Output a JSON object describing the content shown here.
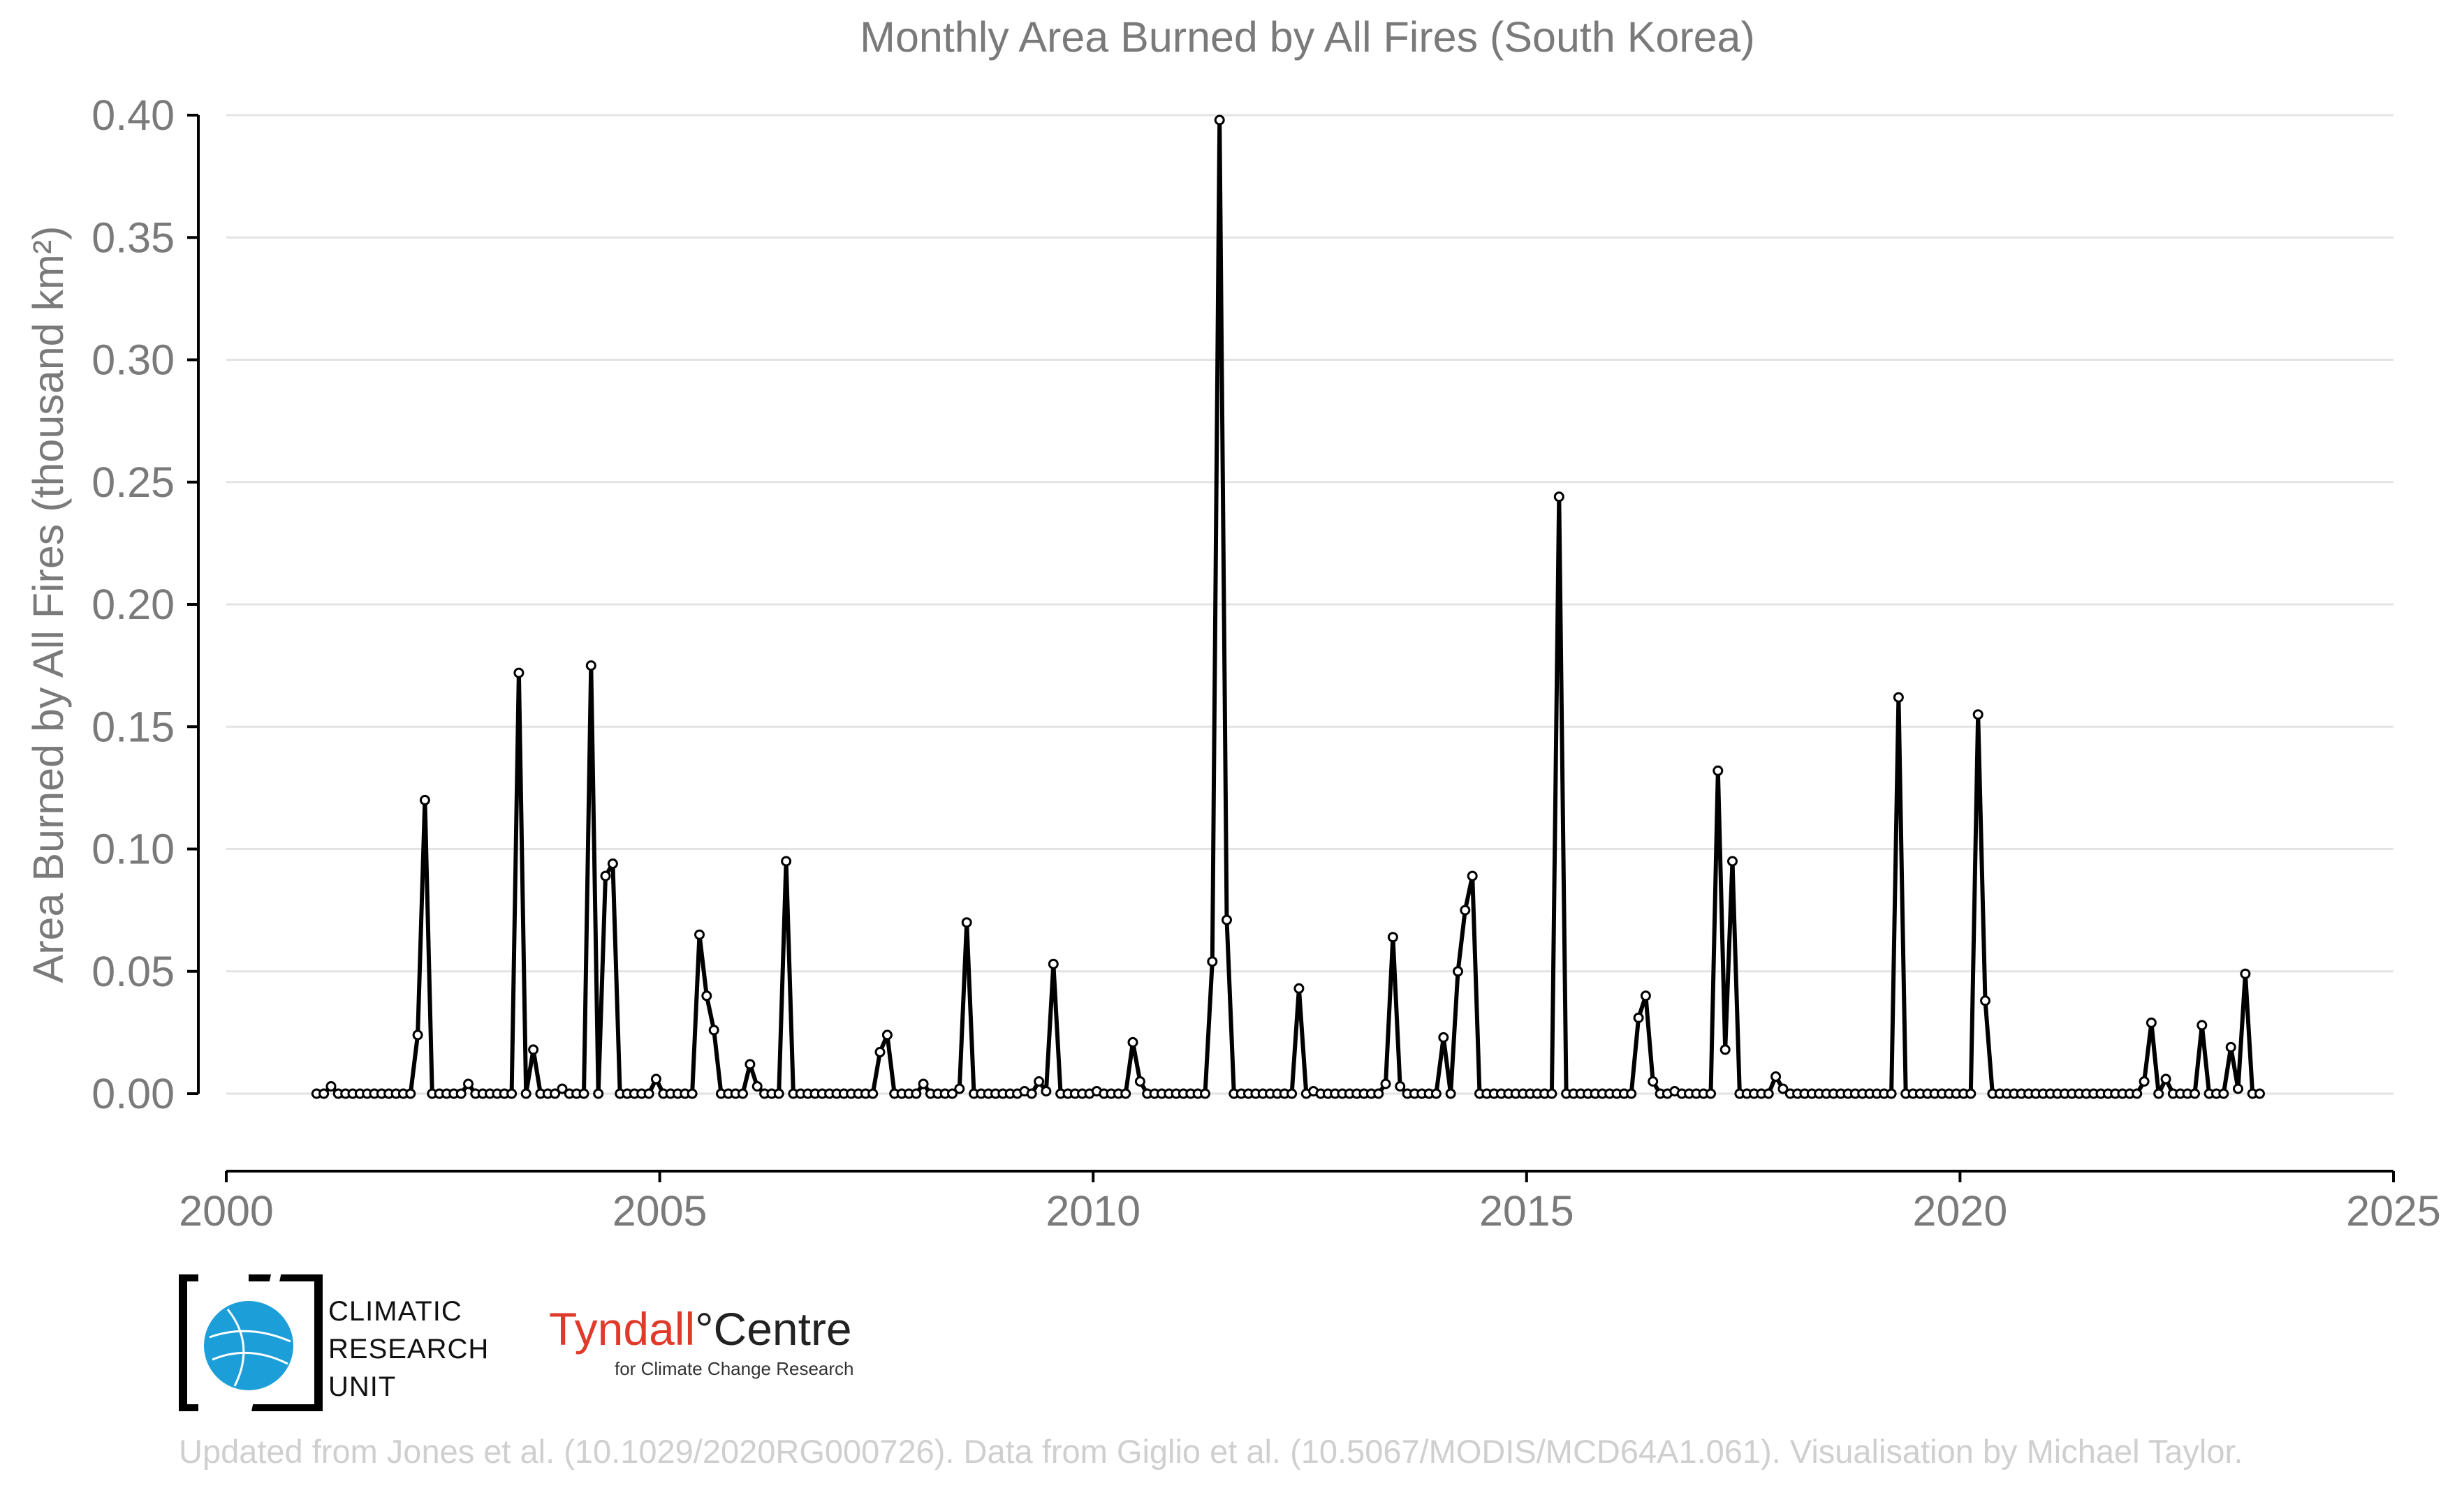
{
  "chart_data": {
    "type": "line",
    "title": "Monthly Area Burned by All Fires (South Korea)",
    "ylabel": "Area Burned by All Fires (thousand km²)",
    "xlabel": "",
    "xlim": [
      2000,
      2025
    ],
    "ylim": [
      -0.03,
      0.4
    ],
    "x_ticks": [
      "2000",
      "2005",
      "2010",
      "2015",
      "2020",
      "2025"
    ],
    "y_ticks": [
      "0.00",
      "0.05",
      "0.10",
      "0.15",
      "0.20",
      "0.25",
      "0.30",
      "0.35",
      "0.40"
    ],
    "grid": true,
    "series": [
      {
        "start": 2001.0417,
        "step": 0.08333,
        "line_color": "#000000",
        "marker_fill": "#ffffff",
        "values": [
          0,
          0,
          0.003,
          0,
          0,
          0,
          0,
          0,
          0,
          0,
          0,
          0,
          0,
          0,
          0.024,
          0.12,
          0,
          0,
          0,
          0,
          0,
          0.004,
          0,
          0,
          0,
          0,
          0,
          0,
          0.172,
          0,
          0.018,
          0,
          0,
          0,
          0.002,
          0,
          0,
          0,
          0.175,
          0,
          0.089,
          0.094,
          0,
          0,
          0,
          0,
          0,
          0.006,
          0,
          0,
          0,
          0,
          0,
          0.065,
          0.04,
          0.026,
          0,
          0,
          0,
          0,
          0.012,
          0.003,
          0,
          0,
          0,
          0.095,
          0,
          0,
          0,
          0,
          0,
          0,
          0,
          0,
          0,
          0,
          0,
          0,
          0.017,
          0.024,
          0,
          0,
          0,
          0,
          0.004,
          0,
          0,
          0,
          0,
          0.002,
          0.07,
          0,
          0,
          0,
          0,
          0,
          0,
          0,
          0.001,
          0,
          0.005,
          0.001,
          0.053,
          0,
          0,
          0,
          0,
          0,
          0.001,
          0,
          0,
          0,
          0,
          0.021,
          0.005,
          0,
          0,
          0,
          0,
          0,
          0,
          0,
          0,
          0,
          0.054,
          0.398,
          0.071,
          0,
          0,
          0,
          0,
          0,
          0,
          0,
          0,
          0,
          0.043,
          0,
          0.001,
          0,
          0,
          0,
          0,
          0,
          0,
          0,
          0,
          0,
          0.004,
          0.064,
          0.003,
          0,
          0,
          0,
          0,
          0,
          0.023,
          0,
          0.05,
          0.075,
          0.089,
          0,
          0,
          0,
          0,
          0,
          0,
          0,
          0,
          0,
          0,
          0,
          0.244,
          0,
          0,
          0,
          0,
          0,
          0,
          0,
          0,
          0,
          0,
          0.031,
          0.04,
          0.005,
          0,
          0,
          0.001,
          0,
          0,
          0,
          0,
          0,
          0.132,
          0.018,
          0.095,
          0,
          0,
          0,
          0,
          0,
          0.007,
          0.002,
          0,
          0,
          0,
          0,
          0,
          0,
          0,
          0,
          0,
          0,
          0,
          0,
          0,
          0,
          0,
          0.162,
          0,
          0,
          0,
          0,
          0,
          0,
          0,
          0,
          0,
          0,
          0.155,
          0.038,
          0,
          0,
          0,
          0,
          0,
          0,
          0,
          0,
          0,
          0,
          0,
          0,
          0,
          0,
          0,
          0,
          0,
          0,
          0,
          0,
          0,
          0.005,
          0.029,
          0,
          0.006,
          0,
          0,
          0,
          0,
          0.028,
          0,
          0,
          0,
          0.019,
          0.002,
          0.049,
          0,
          0
        ]
      }
    ]
  },
  "logos": {
    "cru_line1": "CLIMATIC",
    "cru_line2": "RESEARCH",
    "cru_line3": "UNIT",
    "tyndall_red": "Tyndall",
    "tyndall_degree": "°",
    "tyndall_dark": "Centre",
    "tyndall_sub": "for Climate Change Research"
  },
  "footer": "Updated from Jones et al. (10.1029/2020RG000726). Data from Giglio et al. (10.5067/MODIS/MCD64A1.061). Visualisation by Michael Taylor."
}
